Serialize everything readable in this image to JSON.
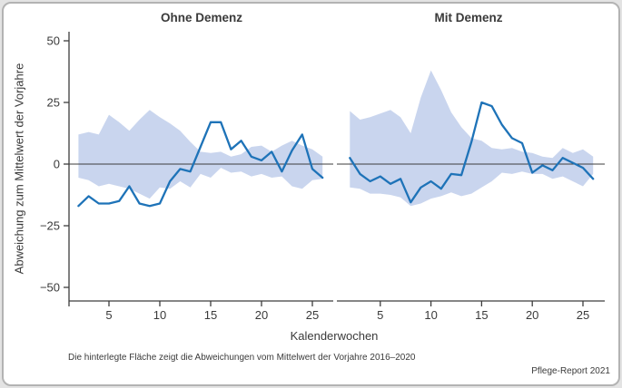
{
  "figure": {
    "panel_titles": [
      "Ohne Demenz",
      "Mit Demenz"
    ],
    "y_axis_label": "Abweichung zum Mittelwert der Vorjahre",
    "x_axis_label": "Kalenderwochen",
    "caption": "Die hinterlegte Fläche zeigt die Abweichungen vom Mittelwert der Vorjahre 2016–2020",
    "source": "Pflege-Report 2021"
  },
  "colors": {
    "line": "#1e73b8",
    "band": "#c9d5ee",
    "axis": "#3d3d3d",
    "zero_line": "#3d3d3d",
    "text": "#3a3a3a"
  },
  "chart_data": [
    {
      "type": "line",
      "title": "Ohne Demenz",
      "xlabel": "Kalenderwochen",
      "ylabel": "Abweichung zum Mittelwert der Vorjahre",
      "ylim": [
        -55,
        55
      ],
      "y_tick_values": [
        50,
        25,
        0,
        -25,
        -50
      ],
      "y_tick_labels": [
        "50",
        "25",
        "0",
        "−25",
        "−50"
      ],
      "x_ticks": [
        5,
        10,
        15,
        20,
        25
      ],
      "grid": false,
      "legend": "none",
      "x": [
        2,
        3,
        4,
        5,
        6,
        7,
        8,
        9,
        10,
        11,
        12,
        13,
        14,
        15,
        16,
        17,
        18,
        19,
        20,
        21,
        22,
        23,
        24,
        25,
        26
      ],
      "series": [
        {
          "name": "deviation-line",
          "values": [
            -17,
            -13,
            -16,
            -16,
            -15,
            -9,
            -16,
            -17,
            -16,
            -7,
            -2,
            -3,
            7,
            17,
            17,
            6,
            9.5,
            3,
            1.5,
            5,
            -3,
            5.5,
            12,
            -2,
            -5.5
          ]
        }
      ],
      "band": {
        "name": "range-previous-years-2016-2020",
        "upper": [
          12,
          13,
          12,
          20,
          17,
          13.5,
          18,
          22,
          19,
          16.5,
          13.5,
          9,
          5,
          4.5,
          5,
          3,
          4,
          7,
          7.5,
          5,
          7.5,
          9.5,
          7.5,
          6,
          3
        ],
        "lower": [
          -5.5,
          -6.5,
          -9,
          -8,
          -9,
          -10,
          -12,
          -14,
          -9.5,
          -10,
          -7,
          -9.5,
          -4,
          -5.5,
          -1.5,
          -3.5,
          -3,
          -5,
          -4,
          -5.5,
          -5,
          -9,
          -10,
          -6.5,
          -6
        ]
      }
    },
    {
      "type": "line",
      "title": "Mit Demenz",
      "xlabel": "Kalenderwochen",
      "ylabel": "Abweichung zum Mittelwert der Vorjahre",
      "ylim": [
        -55,
        55
      ],
      "y_tick_values": [
        50,
        25,
        0,
        -25,
        -50
      ],
      "y_tick_labels": [
        "50",
        "25",
        "0",
        "−25",
        "−50"
      ],
      "x_ticks": [
        5,
        10,
        15,
        20,
        25
      ],
      "grid": false,
      "legend": "none",
      "x": [
        2,
        3,
        4,
        5,
        6,
        7,
        8,
        9,
        10,
        11,
        12,
        13,
        14,
        15,
        16,
        17,
        18,
        19,
        20,
        21,
        22,
        23,
        24,
        25,
        26
      ],
      "series": [
        {
          "name": "deviation-line",
          "values": [
            2.5,
            -4,
            -7,
            -5,
            -8,
            -6,
            -15.5,
            -9.5,
            -7,
            -10,
            -4,
            -4.5,
            9,
            25,
            23.5,
            16,
            10.5,
            8.5,
            -3.5,
            -0.5,
            -2.5,
            2.5,
            0.5,
            -1.5,
            -6
          ]
        }
      ],
      "band": {
        "name": "range-previous-years-2016-2020",
        "upper": [
          21.5,
          18,
          19,
          20.5,
          22,
          19,
          12.5,
          27,
          38,
          30,
          21,
          15,
          10.5,
          9.5,
          6.5,
          6,
          6.5,
          5,
          4.5,
          3,
          2.5,
          6.5,
          4.5,
          6,
          3
        ],
        "lower": [
          -9.5,
          -10,
          -12,
          -12,
          -12.5,
          -13.5,
          -17,
          -16,
          -14,
          -13,
          -11.5,
          -13,
          -12,
          -9.5,
          -7,
          -3.5,
          -4,
          -3,
          -4,
          -4,
          -6,
          -5,
          -7,
          -9,
          -4
        ]
      }
    }
  ]
}
